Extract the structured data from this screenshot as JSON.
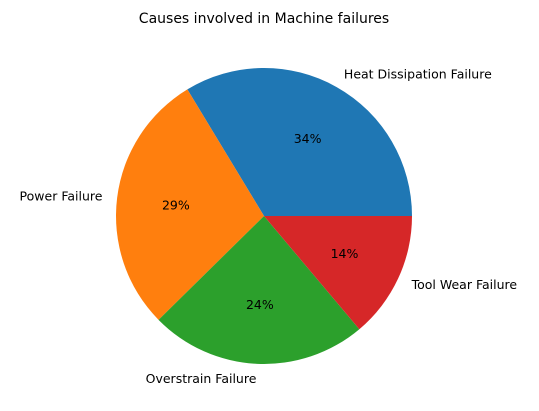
{
  "chart_data": {
    "type": "pie",
    "title": "Causes involved in Machine failures",
    "slices": [
      {
        "label": "Heat Dissipation Failure",
        "value": 34,
        "pct_label": "34%",
        "color": "#1f77b4"
      },
      {
        "label": "Power Failure",
        "value": 29,
        "pct_label": "29%",
        "color": "#ff7f0e"
      },
      {
        "label": "Overstrain Failure",
        "value": 24,
        "pct_label": "24%",
        "color": "#2ca02c"
      },
      {
        "label": "Tool Wear Failure",
        "value": 14,
        "pct_label": "14%",
        "color": "#d62728"
      }
    ],
    "start_angle": 0,
    "direction": "counterclockwise",
    "legend": false
  }
}
